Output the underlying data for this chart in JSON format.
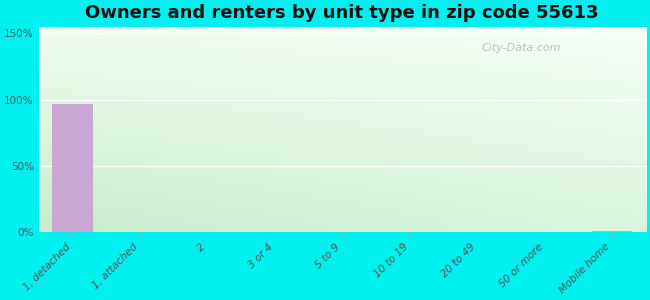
{
  "title": "Owners and renters by unit type in zip code 55613",
  "categories": [
    "1, detached",
    "1, attached",
    "2",
    "3 or 4",
    "5 to 9",
    "10 to 19",
    "20 to 49",
    "50 or more",
    "Mobile home"
  ],
  "values": [
    97,
    0,
    0,
    0,
    0,
    0,
    0,
    0,
    1
  ],
  "bar_color": "#c9a8d4",
  "background_outer": "#00efef",
  "background_inner_topleft": "#e8f5e0",
  "background_inner_topright": "#f5fef5",
  "background_inner_bottom": "#d0eed8",
  "yticks": [
    0,
    50,
    100,
    150
  ],
  "ytick_labels": [
    "0%",
    "50%",
    "100%",
    "150%"
  ],
  "ylim": [
    0,
    155
  ],
  "title_fontsize": 13,
  "tick_fontsize": 7.5,
  "watermark": "City-Data.com"
}
